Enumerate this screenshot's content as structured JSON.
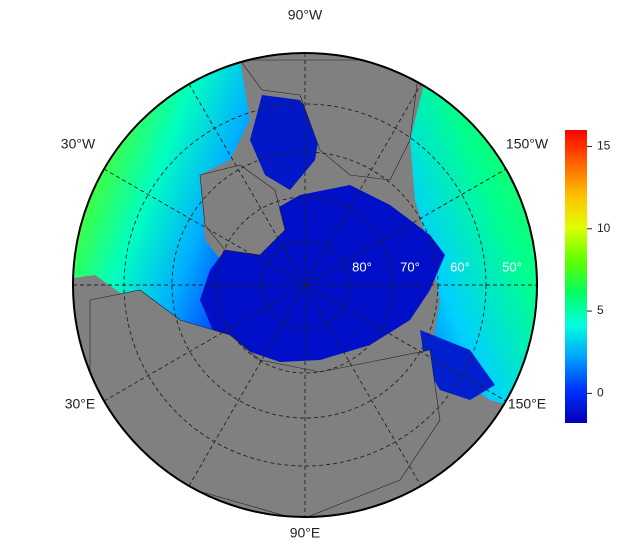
{
  "map": {
    "lon_labels": [
      "90°W",
      "150°W",
      "150°E",
      "90°E",
      "30°E",
      "30°W"
    ],
    "lat_labels": [
      "80°",
      "70°",
      "60°",
      "50°"
    ]
  },
  "colorbar": {
    "lim": [
      -1.8,
      16
    ],
    "ticks": [
      0,
      5,
      10,
      15
    ],
    "colors": [
      "#0000b8",
      "#0030ff",
      "#00a0ff",
      "#00ffe0",
      "#00ff60",
      "#60ff00",
      "#e0ff00",
      "#ffc000",
      "#ff6000",
      "#ff0000"
    ]
  }
}
